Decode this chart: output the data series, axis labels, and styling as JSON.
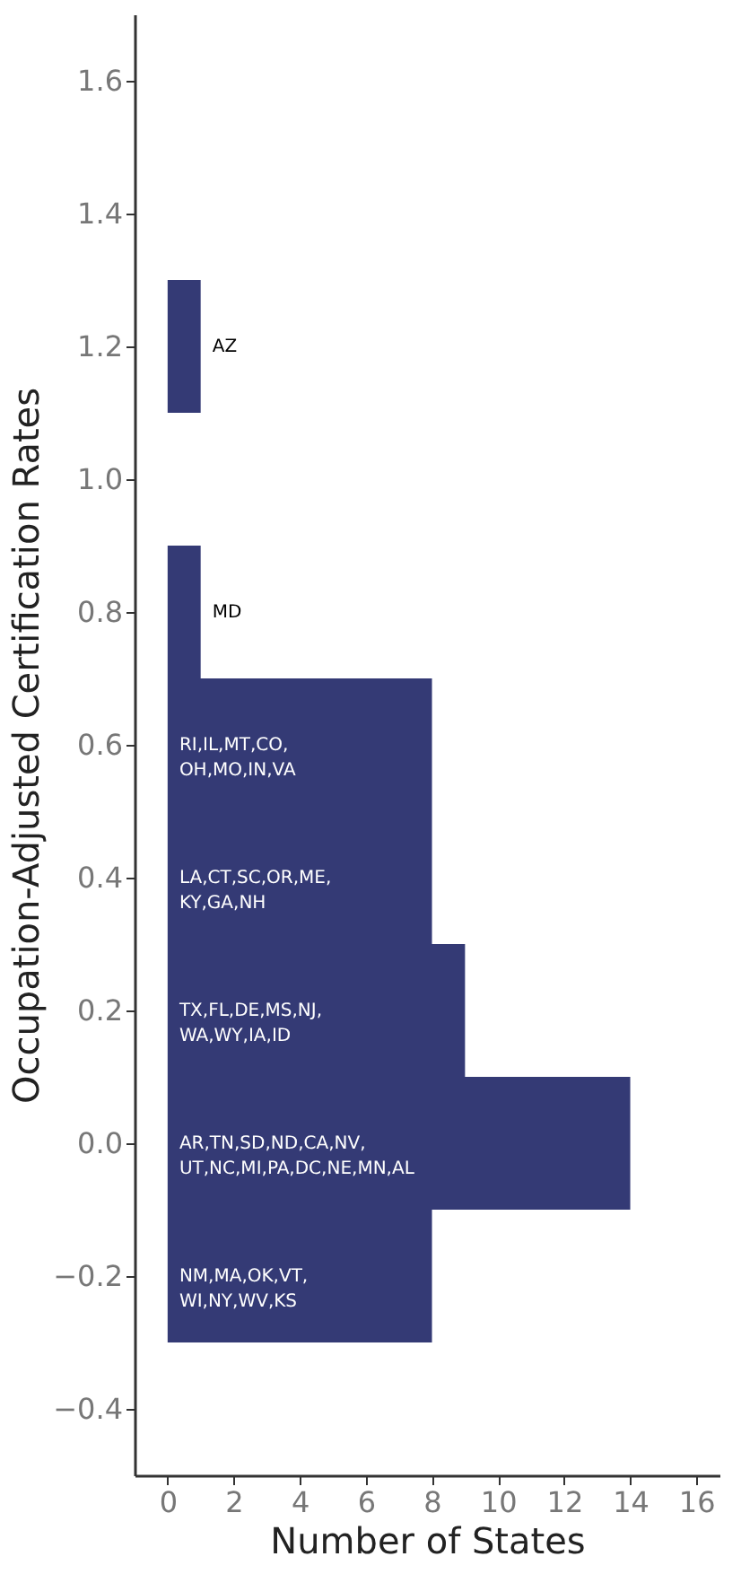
{
  "chart_data": {
    "type": "histogram",
    "orientation": "horizontal",
    "xlabel": "Number of States",
    "ylabel": "Occupation-Adjusted Certification Rates",
    "bins": [
      -0.3,
      -0.1,
      0.1,
      0.3,
      0.5,
      0.7,
      0.9,
      1.1,
      1.3
    ],
    "values": [
      8,
      14,
      9,
      8,
      8,
      1,
      0,
      1
    ],
    "color": "#343a75",
    "xlim": [
      -1,
      16.7
    ],
    "xticks": [
      0,
      2,
      4,
      6,
      8,
      10,
      12,
      14,
      16
    ],
    "ylim": [
      -0.5,
      1.7
    ],
    "yticks": [
      -0.4,
      -0.2,
      {
        "value": 0,
        "label": "0.0"
      },
      0.2,
      0.4,
      0.6,
      0.8,
      {
        "value": 1,
        "label": "1.0"
      },
      1.2,
      1.4,
      1.6
    ],
    "grid": false,
    "annotations": [
      "NM,MA,OK,VT,\nWI,NY,WV,KS",
      "AR,TN,SD,ND,CA,NV,\nUT,NC,MI,PA,DC,NE,MN,AL",
      "TX,FL,DE,MS,NJ,\nWA,WY,IA,ID",
      "LA,CT,SC,OR,ME,\nKY,GA,NH",
      "RI,IL,MT,CO,\nOH,MO,IN,VA",
      "MD",
      "AZ"
    ]
  }
}
